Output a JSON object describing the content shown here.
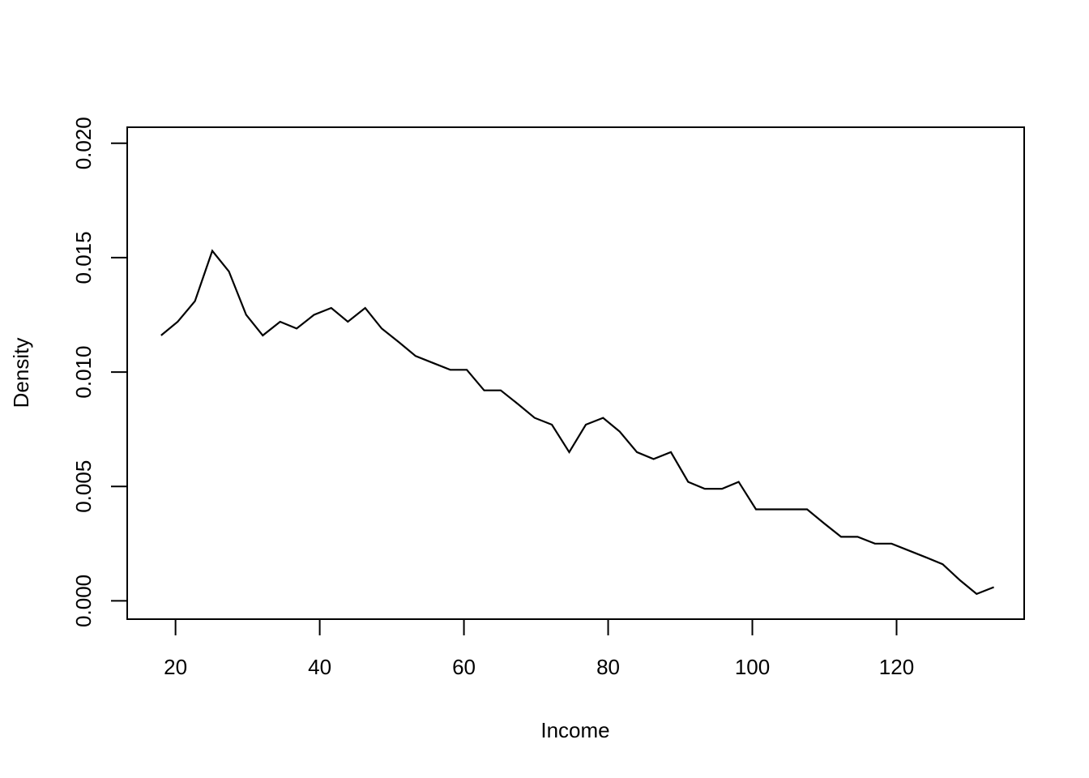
{
  "chart_data": {
    "type": "line",
    "title": "",
    "xlabel": "Income",
    "ylabel": "Density",
    "xlim": [
      13.3,
      137.7
    ],
    "ylim": [
      -0.0008,
      0.0207
    ],
    "xticks": [
      20,
      40,
      60,
      80,
      100,
      120
    ],
    "yticks": [
      0.0,
      0.005,
      0.01,
      0.015,
      0.02
    ],
    "xtick_labels": [
      "20",
      "40",
      "60",
      "80",
      "100",
      "120"
    ],
    "ytick_labels": [
      "0.000",
      "0.005",
      "0.010",
      "0.015",
      "0.020"
    ],
    "grid": false,
    "line_color": "#000000",
    "series": [
      {
        "x": [
          18.0,
          20.3,
          22.7,
          25.1,
          27.4,
          29.8,
          32.1,
          34.5,
          36.8,
          39.2,
          41.6,
          43.9,
          46.3,
          48.6,
          51.0,
          53.3,
          55.7,
          58.1,
          60.4,
          62.8,
          65.1,
          67.5,
          69.8,
          72.2,
          74.6,
          76.9,
          79.3,
          81.6,
          84.0,
          86.3,
          88.7,
          91.1,
          93.4,
          95.8,
          98.1,
          100.5,
          102.8,
          105.2,
          107.6,
          109.9,
          112.3,
          114.6,
          117.0,
          119.3,
          121.7,
          124.1,
          126.4,
          128.8,
          131.1,
          133.5
        ],
        "values": [
          0.0116,
          0.0122,
          0.0131,
          0.0153,
          0.0144,
          0.0125,
          0.0116,
          0.0122,
          0.0119,
          0.0125,
          0.0128,
          0.0122,
          0.0128,
          0.0119,
          0.0113,
          0.0107,
          0.0104,
          0.0101,
          0.0101,
          0.0092,
          0.0092,
          0.0086,
          0.008,
          0.0077,
          0.0065,
          0.0077,
          0.008,
          0.0074,
          0.0065,
          0.0062,
          0.0065,
          0.0052,
          0.0049,
          0.0049,
          0.0052,
          0.004,
          0.004,
          0.004,
          0.004,
          0.0034,
          0.0028,
          0.0028,
          0.0025,
          0.0025,
          0.0022,
          0.0019,
          0.0016,
          0.0009,
          0.0003,
          0.0006
        ]
      }
    ]
  }
}
